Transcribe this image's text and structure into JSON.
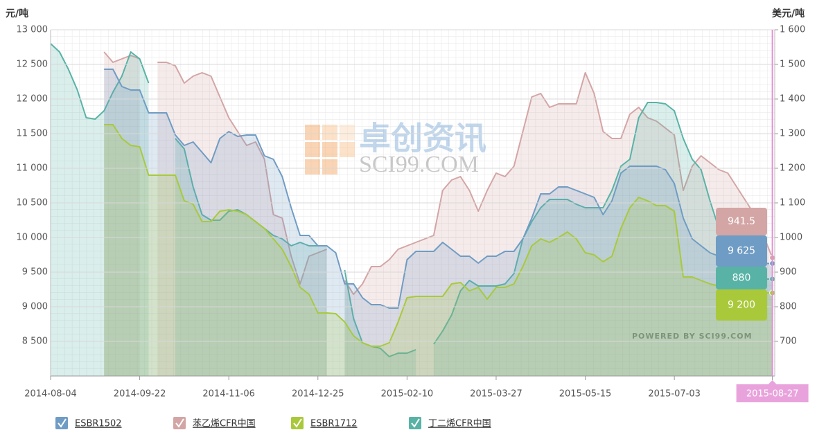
{
  "chart_data": {
    "type": "line",
    "y_unit": "元/吨",
    "y2_unit": "美元/吨",
    "watermark": "卓创资讯",
    "watermark_sub": "SCI99.COM",
    "credit": "POWERED BY SCI99.COM",
    "grid": true,
    "legend": "bottom",
    "categories": [
      "2014-08-04",
      null,
      null,
      null,
      null,
      null,
      null,
      null,
      null,
      null,
      "2014-09-22",
      null,
      null,
      null,
      null,
      null,
      null,
      null,
      null,
      null,
      "2014-11-06",
      null,
      null,
      null,
      null,
      null,
      null,
      null,
      null,
      null,
      "2014-12-25",
      null,
      null,
      null,
      null,
      null,
      null,
      null,
      null,
      null,
      "2015-02-10",
      null,
      null,
      null,
      null,
      null,
      null,
      null,
      null,
      null,
      "2015-03-27",
      null,
      null,
      null,
      null,
      null,
      null,
      null,
      null,
      null,
      "2015-05-15",
      null,
      null,
      null,
      null,
      null,
      null,
      null,
      null,
      null,
      "2015-07-03",
      null,
      null,
      null,
      null,
      null,
      null,
      null,
      null,
      null,
      null,
      "2015-08-27"
    ],
    "ylim": [
      8000,
      13000
    ],
    "yticks": [
      {
        "value": 8500,
        "label": "8 500"
      },
      {
        "value": 9000,
        "label": "9 000"
      },
      {
        "value": 9500,
        "label": "9 500"
      },
      {
        "value": 10000,
        "label": "10 000"
      },
      {
        "value": 10500,
        "label": "10 500"
      },
      {
        "value": 11000,
        "label": "11 000"
      },
      {
        "value": 11500,
        "label": "11 500"
      },
      {
        "value": 12000,
        "label": "12 000"
      },
      {
        "value": 12500,
        "label": "12 500"
      },
      {
        "value": 13000,
        "label": "13 000"
      }
    ],
    "y2lim": [
      600,
      1600
    ],
    "y2ticks": [
      700,
      800,
      900,
      1000,
      {
        "value": 1100,
        "label": "1 100"
      },
      {
        "value": 1200,
        "label": "1 200"
      },
      {
        "value": 1300,
        "label": "1 300"
      },
      {
        "value": 1400,
        "label": "1 400"
      },
      {
        "value": 1500,
        "label": "1 500"
      },
      {
        "value": 1600,
        "label": "1 600"
      }
    ],
    "series": [
      {
        "name": "ESBR1502",
        "color": "#6f9cc4",
        "values": [
          null,
          null,
          null,
          null,
          null,
          null,
          12430,
          12430,
          12180,
          12130,
          12130,
          11800,
          11800,
          11800,
          11480,
          11330,
          11380,
          11230,
          11080,
          11430,
          11530,
          11460,
          11480,
          11480,
          11180,
          11130,
          10880,
          10430,
          10030,
          10030,
          9880,
          9880,
          9780,
          9330,
          9330,
          9130,
          9030,
          9030,
          8980,
          8980,
          9680,
          9800,
          9800,
          9800,
          9930,
          9830,
          9730,
          9730,
          9630,
          9730,
          9730,
          9800,
          9800,
          9980,
          10280,
          10630,
          10630,
          10730,
          10730,
          10680,
          10630,
          10580,
          10330,
          10530,
          10930,
          11030,
          11030,
          11030,
          11030,
          10980,
          10780,
          10280,
          9980,
          9880,
          9780,
          9730,
          9680,
          9630,
          9625,
          9625,
          9625,
          9625
        ],
        "value_labels": [
          null,
          null,
          null,
          null,
          null,
          null,
          null,
          null,
          null,
          null,
          null,
          null,
          null,
          null,
          null,
          null,
          null,
          null,
          null,
          null,
          null,
          null,
          null,
          null,
          null,
          null,
          null,
          null,
          null,
          null,
          null,
          null,
          null,
          null,
          null,
          null,
          null,
          null,
          null,
          null,
          null,
          null,
          null,
          null,
          null,
          null,
          null,
          null,
          null,
          null,
          null,
          null,
          null,
          null,
          null,
          null,
          null,
          null,
          null,
          null,
          null,
          null,
          null,
          null,
          null,
          null,
          null,
          null,
          null,
          null,
          null,
          null,
          null,
          null,
          null,
          null,
          null,
          null,
          null,
          null,
          null,
          "9 625"
        ]
      },
      {
        "name": "苯乙烯CFR中国",
        "color": "#d4a5a5",
        "axis": "y2",
        "values": [
          null,
          null,
          null,
          null,
          null,
          null,
          1536,
          1506,
          1516,
          1526,
          1516,
          null,
          1506,
          1506,
          1496,
          1446,
          1466,
          1476,
          1466,
          1406,
          1346,
          1306,
          1266,
          1276,
          1226,
          1066,
          1056,
          946,
          866,
          946,
          956,
          966,
          null,
          876,
          836,
          866,
          916,
          916,
          936,
          966,
          976,
          986,
          996,
          1006,
          1136,
          1166,
          1176,
          1136,
          1076,
          1136,
          1186,
          1176,
          1206,
          1306,
          1406,
          1416,
          1376,
          1386,
          1386,
          1386,
          1476,
          1416,
          1306,
          1286,
          1286,
          1356,
          1376,
          1346,
          1336,
          1316,
          1296,
          1136,
          1206,
          1236,
          1216,
          1196,
          1186,
          1146,
          1106,
          1066,
          1006,
          941.5
        ]
      },
      {
        "name": "ESBR1712",
        "color": "#a9c93b",
        "values": [
          null,
          null,
          null,
          null,
          null,
          null,
          11630,
          11630,
          11430,
          11330,
          11310,
          10900,
          10900,
          10900,
          10900,
          10530,
          10480,
          10230,
          10230,
          10380,
          10400,
          10380,
          10330,
          10230,
          10130,
          9980,
          9830,
          9580,
          9280,
          9180,
          8910,
          8910,
          8900,
          8780,
          8580,
          8480,
          8430,
          8430,
          8480,
          8780,
          9130,
          9150,
          9150,
          9150,
          9150,
          9330,
          9350,
          9230,
          9280,
          9110,
          9280,
          9280,
          9330,
          9580,
          9880,
          9980,
          9930,
          10000,
          10080,
          9980,
          9780,
          9750,
          9650,
          9730,
          10130,
          10430,
          10580,
          10530,
          10460,
          10460,
          10380,
          9430,
          9430,
          9380,
          9330,
          9300,
          9250,
          9200,
          9200,
          9200,
          9200,
          9200
        ],
        "value_labels": [
          null,
          null,
          null,
          null,
          null,
          null,
          null,
          null,
          null,
          null,
          null,
          null,
          null,
          null,
          null,
          null,
          null,
          null,
          null,
          null,
          null,
          null,
          null,
          null,
          null,
          null,
          null,
          null,
          null,
          null,
          null,
          null,
          null,
          null,
          null,
          null,
          null,
          null,
          null,
          null,
          null,
          null,
          null,
          null,
          null,
          null,
          null,
          null,
          null,
          null,
          null,
          null,
          null,
          null,
          null,
          null,
          null,
          null,
          null,
          null,
          null,
          null,
          null,
          null,
          null,
          null,
          null,
          null,
          null,
          null,
          null,
          null,
          null,
          null,
          null,
          null,
          null,
          null,
          null,
          null,
          null,
          "9 200"
        ]
      },
      {
        "name": "丁二烯CFR中国",
        "color": "#58b3a6",
        "axis": "y2",
        "values": [
          1560,
          1536,
          1486,
          1426,
          1346,
          1342,
          1366,
          1420,
          1466,
          1536,
          1516,
          1446,
          null,
          null,
          1286,
          1256,
          1146,
          1066,
          1050,
          1050,
          1076,
          1080,
          1066,
          1046,
          1026,
          1006,
          996,
          976,
          986,
          976,
          976,
          976,
          null,
          906,
          766,
          696,
          686,
          680,
          656,
          666,
          666,
          676,
          null,
          692,
          730,
          776,
          846,
          876,
          860,
          860,
          860,
          866,
          896,
          996,
          1046,
          1086,
          1110,
          1110,
          1110,
          1096,
          1086,
          1086,
          1086,
          1136,
          1206,
          1226,
          1346,
          1390,
          1390,
          1386,
          1366,
          1286,
          1226,
          1196,
          1106,
          1026,
          976,
          936,
          896,
          886,
          880,
          880
        ]
      }
    ]
  }
}
